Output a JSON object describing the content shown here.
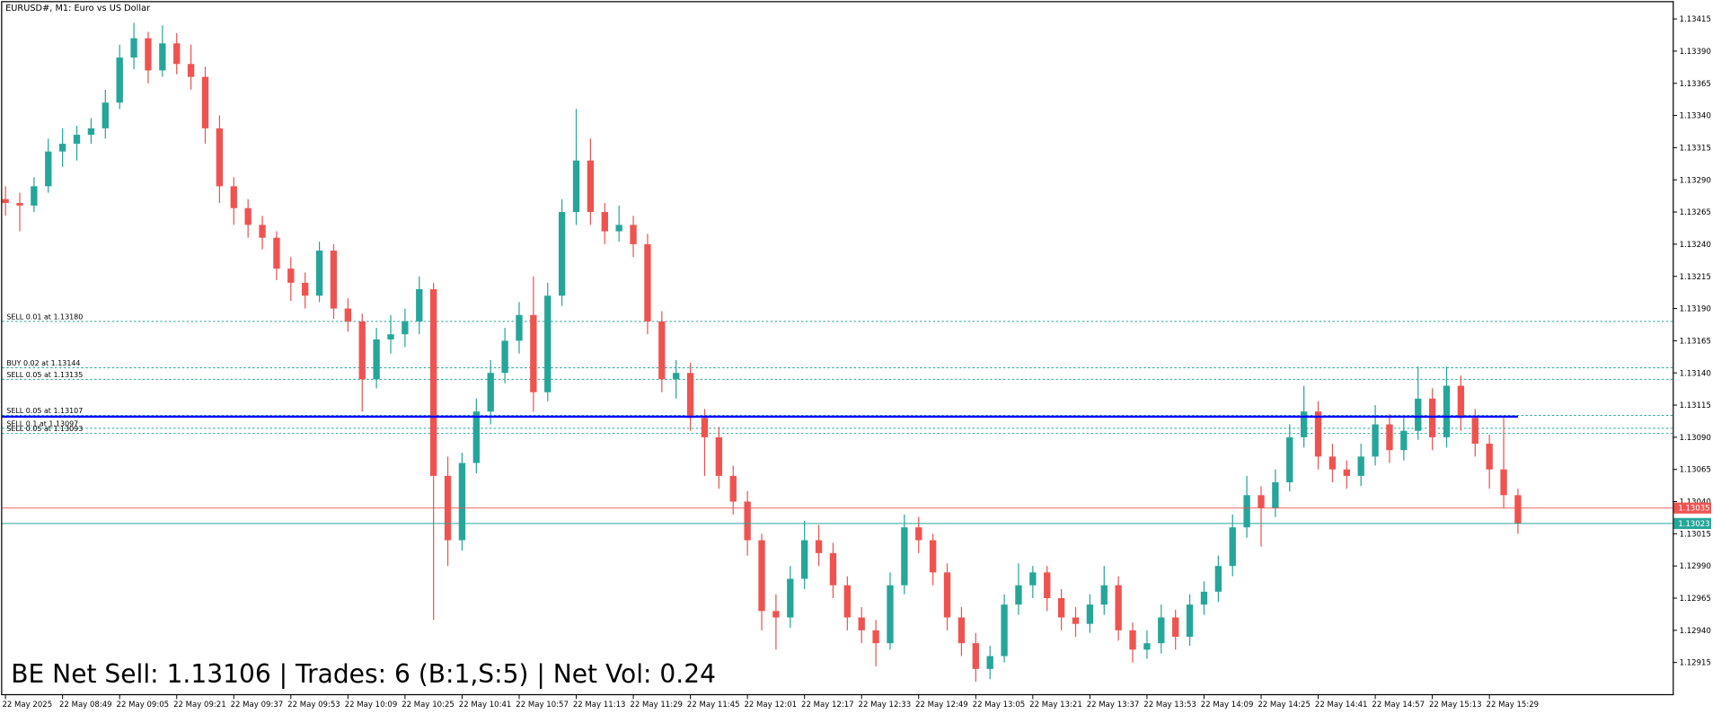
{
  "chart_data": {
    "type": "candlestick",
    "title": "EURUSD#, M1:  Euro vs US Dollar",
    "bull_color": "#26a69a",
    "bear_color": "#ef5350",
    "ylim": [
      1.1289,
      1.13428
    ],
    "yticks": [
      1.13415,
      {
        "value": 1.1339,
        "label": "1.13390"
      },
      1.13365,
      {
        "value": 1.1334,
        "label": "1.13340"
      },
      1.13315,
      {
        "value": 1.1329,
        "label": "1.13290"
      },
      1.13265,
      {
        "value": 1.1324,
        "label": "1.13240"
      },
      1.13215,
      {
        "value": 1.1319,
        "label": "1.13190"
      },
      1.13165,
      {
        "value": 1.1314,
        "label": "1.13140"
      },
      1.13115,
      {
        "value": 1.1309,
        "label": "1.13090"
      },
      1.13065,
      {
        "value": 1.1304,
        "label": "1.13040"
      },
      1.13015,
      {
        "value": 1.1299,
        "label": "1.12990"
      },
      1.12965,
      {
        "value": 1.1294,
        "label": "1.12940"
      },
      1.12915
    ],
    "xtick_labels": [
      "22 May 2025",
      "22 May 08:49",
      "22 May 09:05",
      "22 May 09:21",
      "22 May 09:37",
      "22 May 09:53",
      "22 May 10:09",
      "22 May 10:25",
      "22 May 10:41",
      "22 May 10:57",
      "22 May 11:13",
      "22 May 11:29",
      "22 May 11:45",
      "22 May 12:01",
      "22 May 12:17",
      "22 May 12:33",
      "22 May 12:49",
      "22 May 13:05",
      "22 May 13:21",
      "22 May 13:37",
      "22 May 13:53",
      "22 May 14:09",
      "22 May 14:25",
      "22 May 14:41",
      "22 May 14:57",
      "22 May 15:13",
      "22 May 15:29"
    ],
    "candles": [
      [
        1.13275,
        1.13285,
        1.13262,
        1.13272
      ],
      [
        1.13272,
        1.1328,
        1.1325,
        1.1327
      ],
      [
        1.1327,
        1.13292,
        1.13265,
        1.13285
      ],
      [
        1.13285,
        1.13322,
        1.1328,
        1.13312
      ],
      [
        1.13312,
        1.1333,
        1.133,
        1.13318
      ],
      [
        1.13318,
        1.13332,
        1.13305,
        1.13325
      ],
      [
        1.13325,
        1.13338,
        1.13318,
        1.1333
      ],
      [
        1.1333,
        1.1336,
        1.13322,
        1.1335
      ],
      [
        1.1335,
        1.13395,
        1.13345,
        1.13385
      ],
      [
        1.13385,
        1.13412,
        1.13376,
        1.134
      ],
      [
        1.134,
        1.13405,
        1.13365,
        1.13375
      ],
      [
        1.13375,
        1.1341,
        1.1337,
        1.13396
      ],
      [
        1.13396,
        1.13404,
        1.13372,
        1.1338
      ],
      [
        1.1338,
        1.13395,
        1.1336,
        1.1337
      ],
      [
        1.1337,
        1.13378,
        1.13318,
        1.1333
      ],
      [
        1.1333,
        1.1334,
        1.13272,
        1.13285
      ],
      [
        1.13285,
        1.13292,
        1.13255,
        1.13268
      ],
      [
        1.13268,
        1.13275,
        1.13245,
        1.13255
      ],
      [
        1.13255,
        1.13262,
        1.13236,
        1.13245
      ],
      [
        1.13245,
        1.1325,
        1.13212,
        1.13221
      ],
      [
        1.13221,
        1.1323,
        1.13196,
        1.1321
      ],
      [
        1.1321,
        1.13218,
        1.1319,
        1.132
      ],
      [
        1.132,
        1.13242,
        1.13195,
        1.13235
      ],
      [
        1.13235,
        1.1324,
        1.13182,
        1.1319
      ],
      [
        1.1319,
        1.13198,
        1.13172,
        1.1318
      ],
      [
        1.1318,
        1.13186,
        1.1311,
        1.13135
      ],
      [
        1.13135,
        1.13175,
        1.13128,
        1.13166
      ],
      [
        1.13166,
        1.13185,
        1.13155,
        1.1317
      ],
      [
        1.1317,
        1.1319,
        1.1316,
        1.1318
      ],
      [
        1.1318,
        1.13215,
        1.1317,
        1.13205
      ],
      [
        1.13205,
        1.1321,
        1.12948,
        1.1306
      ],
      [
        1.1306,
        1.13075,
        1.1299,
        1.1301
      ],
      [
        1.1301,
        1.13078,
        1.13002,
        1.1307
      ],
      [
        1.1307,
        1.1312,
        1.13062,
        1.1311
      ],
      [
        1.1311,
        1.1315,
        1.131,
        1.1314
      ],
      [
        1.1314,
        1.13175,
        1.13132,
        1.13165
      ],
      [
        1.13165,
        1.13195,
        1.13155,
        1.13185
      ],
      [
        1.13185,
        1.13215,
        1.1311,
        1.13125
      ],
      [
        1.13125,
        1.1321,
        1.13118,
        1.132
      ],
      [
        1.132,
        1.13275,
        1.13192,
        1.13265
      ],
      [
        1.13265,
        1.13345,
        1.13255,
        1.13305
      ],
      [
        1.13305,
        1.13322,
        1.13255,
        1.13265
      ],
      [
        1.13265,
        1.13272,
        1.1324,
        1.1325
      ],
      [
        1.1325,
        1.1327,
        1.13242,
        1.13255
      ],
      [
        1.13255,
        1.13262,
        1.1323,
        1.1324
      ],
      [
        1.1324,
        1.13248,
        1.1317,
        1.1318
      ],
      [
        1.1318,
        1.13188,
        1.13125,
        1.13135
      ],
      [
        1.13135,
        1.1315,
        1.1312,
        1.1314
      ],
      [
        1.1314,
        1.13148,
        1.13095,
        1.13105
      ],
      [
        1.13105,
        1.13112,
        1.1306,
        1.1309
      ],
      [
        1.1309,
        1.13098,
        1.1305,
        1.1306
      ],
      [
        1.1306,
        1.13068,
        1.1303,
        1.1304
      ],
      [
        1.1304,
        1.13048,
        1.12998,
        1.1301
      ],
      [
        1.1301,
        1.13015,
        1.1294,
        1.12955
      ],
      [
        1.12955,
        1.12968,
        1.12925,
        1.1295
      ],
      [
        1.1295,
        1.1299,
        1.12942,
        1.1298
      ],
      [
        1.1298,
        1.13025,
        1.12972,
        1.1301
      ],
      [
        1.1301,
        1.13022,
        1.1299,
        1.13
      ],
      [
        1.13,
        1.13008,
        1.12965,
        1.12975
      ],
      [
        1.12975,
        1.12982,
        1.1294,
        1.1295
      ],
      [
        1.1295,
        1.12958,
        1.1293,
        1.1294
      ],
      [
        1.1294,
        1.12948,
        1.12912,
        1.1293
      ],
      [
        1.1293,
        1.12985,
        1.12925,
        1.12975
      ],
      [
        1.12975,
        1.1303,
        1.12968,
        1.1302
      ],
      [
        1.1302,
        1.13028,
        1.13,
        1.1301
      ],
      [
        1.1301,
        1.13015,
        1.12975,
        1.12985
      ],
      [
        1.12985,
        1.12992,
        1.1294,
        1.1295
      ],
      [
        1.1295,
        1.12958,
        1.1292,
        1.1293
      ],
      [
        1.1293,
        1.12938,
        1.129,
        1.1291
      ],
      [
        1.1291,
        1.12928,
        1.12902,
        1.1292
      ],
      [
        1.1292,
        1.12968,
        1.12915,
        1.1296
      ],
      [
        1.1296,
        1.12992,
        1.12952,
        1.12975
      ],
      [
        1.12975,
        1.1299,
        1.12965,
        1.12985
      ],
      [
        1.12985,
        1.1299,
        1.12955,
        1.12965
      ],
      [
        1.12965,
        1.12972,
        1.1294,
        1.1295
      ],
      [
        1.1295,
        1.12958,
        1.12935,
        1.12945
      ],
      [
        1.12945,
        1.12968,
        1.12938,
        1.1296
      ],
      [
        1.1296,
        1.1299,
        1.12952,
        1.12975
      ],
      [
        1.12975,
        1.12982,
        1.12932,
        1.1294
      ],
      [
        1.1294,
        1.12946,
        1.12915,
        1.12925
      ],
      [
        1.12925,
        1.1294,
        1.12918,
        1.1293
      ],
      [
        1.1293,
        1.1296,
        1.12922,
        1.1295
      ],
      [
        1.1295,
        1.12956,
        1.12925,
        1.12935
      ],
      [
        1.12935,
        1.12968,
        1.12928,
        1.1296
      ],
      [
        1.1296,
        1.12978,
        1.12952,
        1.1297
      ],
      [
        1.1297,
        1.12998,
        1.12962,
        1.1299
      ],
      [
        1.1299,
        1.1303,
        1.12982,
        1.1302
      ],
      [
        1.1302,
        1.1306,
        1.13012,
        1.13045
      ],
      [
        1.13045,
        1.13052,
        1.13005,
        1.13035
      ],
      [
        1.13035,
        1.13065,
        1.13028,
        1.13055
      ],
      [
        1.13055,
        1.131,
        1.13048,
        1.1309
      ],
      [
        1.1309,
        1.1313,
        1.13082,
        1.1311
      ],
      [
        1.1311,
        1.13118,
        1.13065,
        1.13075
      ],
      [
        1.13075,
        1.13085,
        1.13055,
        1.13065
      ],
      [
        1.13065,
        1.13072,
        1.1305,
        1.1306
      ],
      [
        1.1306,
        1.13085,
        1.13052,
        1.13075
      ],
      [
        1.13075,
        1.13115,
        1.13068,
        1.131
      ],
      [
        1.131,
        1.13108,
        1.1307,
        1.1308
      ],
      [
        1.1308,
        1.13105,
        1.13072,
        1.13095
      ],
      [
        1.13095,
        1.13145,
        1.13088,
        1.1312
      ],
      [
        1.1312,
        1.13128,
        1.1308,
        1.1309
      ],
      [
        1.1309,
        1.13145,
        1.13082,
        1.1313
      ],
      [
        1.1313,
        1.13138,
        1.13095,
        1.13105
      ],
      [
        1.13105,
        1.13112,
        1.13075,
        1.13085
      ],
      [
        1.13085,
        1.13092,
        1.1305,
        1.13065
      ],
      [
        1.13065,
        1.13105,
        1.13035,
        1.13045
      ],
      [
        1.13045,
        1.1305,
        1.13015,
        1.13023
      ]
    ],
    "levels_color": "#26a69a",
    "levels": [
      {
        "label": "SELL 0.01 at 1.13180",
        "value": 1.1318
      },
      {
        "label": "BUY 0.02 at 1.13144",
        "value": 1.13144
      },
      {
        "label": "SELL 0.05 at 1.13135",
        "value": 1.13135
      },
      {
        "label": "SELL 0.05 at 1.13107",
        "value": 1.13107
      },
      {
        "label": "SELL 0.1 at 1.13097",
        "value": 1.13097
      },
      {
        "label": "SELL 0.05 at 1.13093",
        "value": 1.13093
      }
    ],
    "be_line": {
      "value": 1.13106,
      "color": "#0000ff"
    },
    "price_lines": [
      {
        "value": 1.13035,
        "label": "1.13035",
        "color": "#ef5350"
      },
      {
        "value": 1.13023,
        "label": "1.13023",
        "color": "#26a69a"
      }
    ],
    "status": "BE Net Sell: 1.13106 | Trades: 6 (B:1,S:5) | Net Vol: 0.24",
    "status_color": "#1a1aff"
  }
}
